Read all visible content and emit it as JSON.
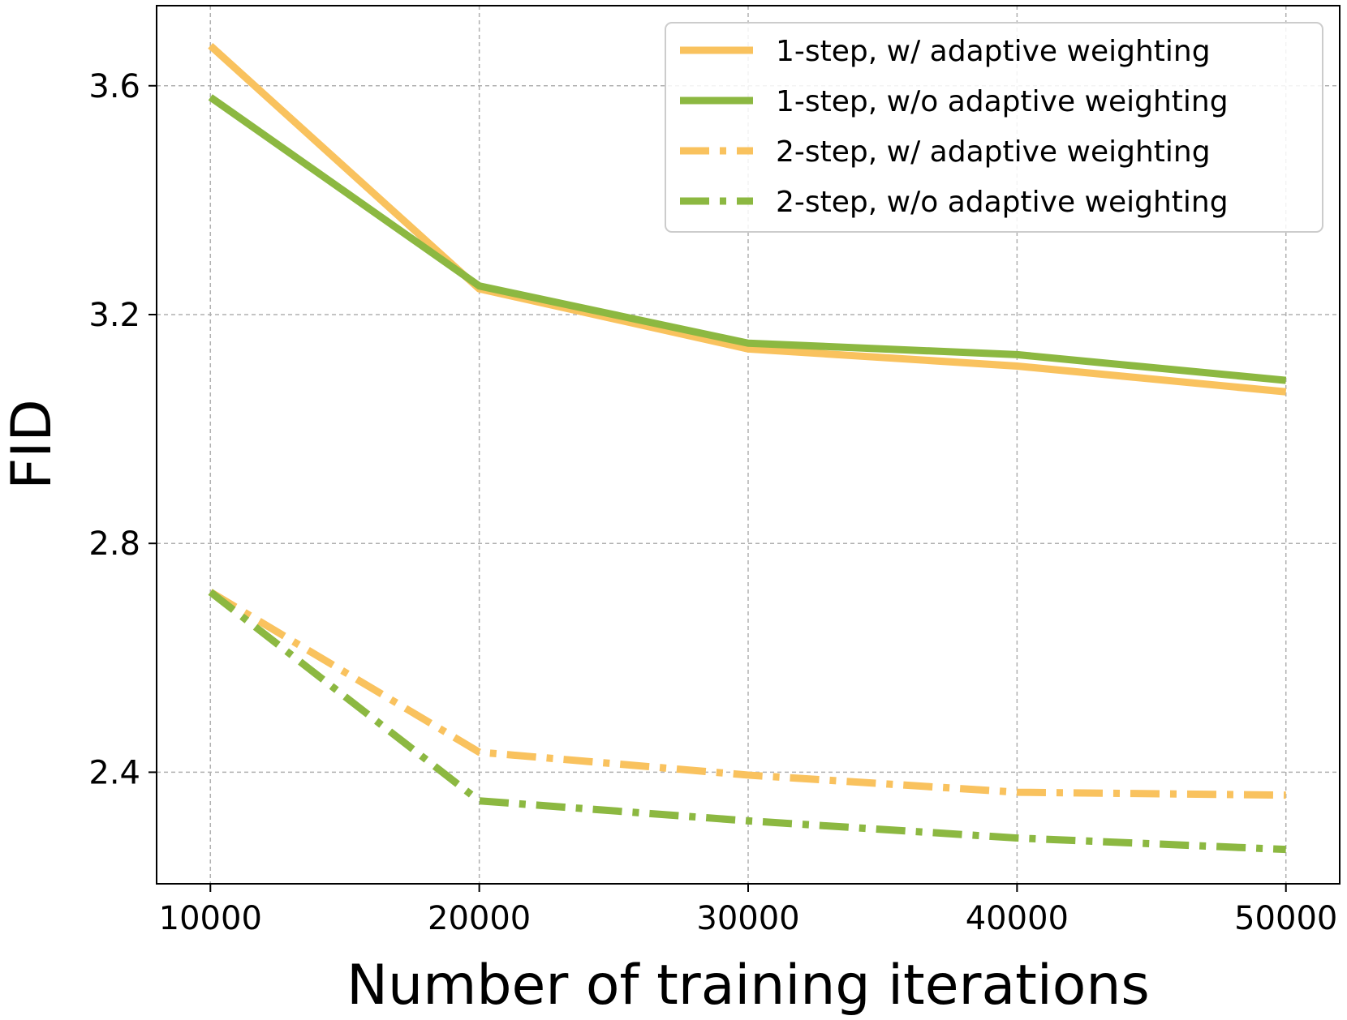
{
  "chart_data": {
    "type": "line",
    "title": "",
    "xlabel": "Number of training iterations",
    "ylabel": "FID",
    "x": [
      10000,
      20000,
      30000,
      40000,
      50000
    ],
    "xticks": [
      "10000",
      "20000",
      "30000",
      "40000",
      "50000"
    ],
    "yticks": [
      "2.4",
      "2.8",
      "3.2",
      "3.6"
    ],
    "ytick_values": [
      2.4,
      2.8,
      3.2,
      3.6
    ],
    "xlim": [
      8000,
      52000
    ],
    "ylim": [
      2.205,
      3.74
    ],
    "grid": true,
    "legend_position": "top-right",
    "series": [
      {
        "name": "1-step, w/ adaptive weighting",
        "values": [
          3.67,
          3.245,
          3.14,
          3.11,
          3.065
        ],
        "color": "#F9C25E",
        "style": "solid"
      },
      {
        "name": "1-step, w/o adaptive weighting",
        "values": [
          3.58,
          3.25,
          3.15,
          3.13,
          3.085
        ],
        "color": "#8CB841",
        "style": "solid"
      },
      {
        "name": "2-step, w/ adaptive weighting",
        "values": [
          2.715,
          2.435,
          2.395,
          2.365,
          2.36
        ],
        "color": "#F9C25E",
        "style": "dashdot"
      },
      {
        "name": "2-step, w/o adaptive weighting",
        "values": [
          2.715,
          2.35,
          2.315,
          2.285,
          2.265
        ],
        "color": "#8CB841",
        "style": "dashdot"
      }
    ]
  }
}
